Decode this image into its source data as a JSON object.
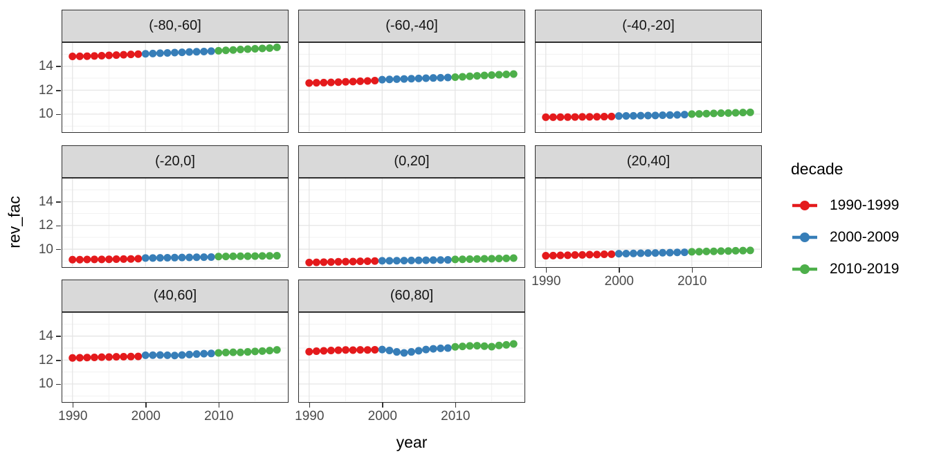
{
  "chart_data": {
    "type": "scatter",
    "title": "",
    "xlabel": "year",
    "ylabel": "rev_fac",
    "legend_title": "decade",
    "legend_position": "right",
    "grid": true,
    "x_domain": [
      1988.6,
      2019.4
    ],
    "y_domain": [
      8.55,
      15.95
    ],
    "x_major_ticks": [
      1990,
      2000,
      2010
    ],
    "x_minor_ticks": [
      1995,
      2005,
      2015
    ],
    "y_major_ticks": [
      10,
      12,
      14
    ],
    "y_minor_ticks": [
      9,
      11,
      13,
      15
    ],
    "years": [
      1990,
      1991,
      1992,
      1993,
      1994,
      1995,
      1996,
      1997,
      1998,
      1999,
      2000,
      2001,
      2002,
      2003,
      2004,
      2005,
      2006,
      2007,
      2008,
      2009,
      2010,
      2011,
      2012,
      2013,
      2014,
      2015,
      2016,
      2017,
      2018
    ],
    "decades": [
      {
        "label": "1990-1999",
        "color": "#E41A1C",
        "start": 1990,
        "end": 1999
      },
      {
        "label": "2000-2009",
        "color": "#377EB8",
        "start": 2000,
        "end": 2009
      },
      {
        "label": "2010-2019",
        "color": "#4DAF4A",
        "start": 2010,
        "end": 2019
      }
    ],
    "facets": [
      {
        "label": "(-80,-60]",
        "row": 0,
        "col": 0,
        "values": [
          14.82,
          14.83,
          14.84,
          14.86,
          14.88,
          14.91,
          14.93,
          14.96,
          14.99,
          15.01,
          15.04,
          15.06,
          15.09,
          15.11,
          15.14,
          15.16,
          15.19,
          15.21,
          15.23,
          15.26,
          15.29,
          15.33,
          15.36,
          15.4,
          15.43,
          15.46,
          15.49,
          15.52,
          15.58
        ]
      },
      {
        "label": "(-60,-40]",
        "row": 0,
        "col": 1,
        "values": [
          12.6,
          12.62,
          12.63,
          12.65,
          12.67,
          12.7,
          12.72,
          12.75,
          12.77,
          12.8,
          12.88,
          12.9,
          12.92,
          12.94,
          12.96,
          12.98,
          13.0,
          13.02,
          13.04,
          13.06,
          13.09,
          13.12,
          13.16,
          13.2,
          13.23,
          13.26,
          13.29,
          13.32,
          13.35
        ]
      },
      {
        "label": "(-40,-20]",
        "row": 0,
        "col": 2,
        "values": [
          9.74,
          9.74,
          9.75,
          9.75,
          9.76,
          9.77,
          9.77,
          9.78,
          9.79,
          9.8,
          9.84,
          9.85,
          9.86,
          9.87,
          9.88,
          9.89,
          9.91,
          9.92,
          9.94,
          9.96,
          10.0,
          10.02,
          10.04,
          10.06,
          10.08,
          10.09,
          10.11,
          10.13,
          10.15
        ]
      },
      {
        "label": "(-20,0]",
        "row": 1,
        "col": 0,
        "values": [
          9.12,
          9.12,
          9.13,
          9.14,
          9.14,
          9.15,
          9.16,
          9.17,
          9.18,
          9.2,
          9.26,
          9.26,
          9.27,
          9.28,
          9.29,
          9.3,
          9.31,
          9.32,
          9.33,
          9.34,
          9.38,
          9.39,
          9.4,
          9.41,
          9.41,
          9.42,
          9.43,
          9.44,
          9.45
        ]
      },
      {
        "label": "(0,20]",
        "row": 1,
        "col": 1,
        "values": [
          8.88,
          8.89,
          8.91,
          8.92,
          8.94,
          8.95,
          8.96,
          8.98,
          8.99,
          9.0,
          9.02,
          9.02,
          9.03,
          9.04,
          9.05,
          9.06,
          9.07,
          9.08,
          9.09,
          9.1,
          9.14,
          9.15,
          9.16,
          9.18,
          9.19,
          9.2,
          9.21,
          9.23,
          9.25
        ]
      },
      {
        "label": "(20,40]",
        "row": 1,
        "col": 2,
        "values": [
          9.45,
          9.46,
          9.48,
          9.49,
          9.51,
          9.52,
          9.54,
          9.55,
          9.57,
          9.58,
          9.62,
          9.63,
          9.64,
          9.66,
          9.67,
          9.68,
          9.7,
          9.71,
          9.73,
          9.74,
          9.78,
          9.79,
          9.81,
          9.82,
          9.84,
          9.85,
          9.87,
          9.88,
          9.9
        ]
      },
      {
        "label": "(40,60]",
        "row": 2,
        "col": 0,
        "values": [
          12.18,
          12.19,
          12.21,
          12.22,
          12.24,
          12.25,
          12.27,
          12.28,
          12.29,
          12.3,
          12.4,
          12.41,
          12.42,
          12.4,
          12.38,
          12.42,
          12.46,
          12.5,
          12.53,
          12.55,
          12.6,
          12.63,
          12.65,
          12.64,
          12.68,
          12.72,
          12.75,
          12.79,
          12.85
        ]
      },
      {
        "label": "(60,80]",
        "row": 2,
        "col": 1,
        "values": [
          12.7,
          12.74,
          12.77,
          12.8,
          12.82,
          12.84,
          12.83,
          12.85,
          12.84,
          12.86,
          12.88,
          12.8,
          12.68,
          12.6,
          12.68,
          12.78,
          12.88,
          12.94,
          12.98,
          13.0,
          13.1,
          13.14,
          13.18,
          13.2,
          13.16,
          13.12,
          13.22,
          13.27,
          13.35
        ]
      }
    ],
    "style": {
      "strip_bg": "#D9D9D9",
      "panel_border": "#2e2e2e",
      "grid_major": "#E3E3E3",
      "grid_minor": "#F1F1F1",
      "tick_text": "#4a4a4a",
      "point_radius": 5.5
    }
  }
}
